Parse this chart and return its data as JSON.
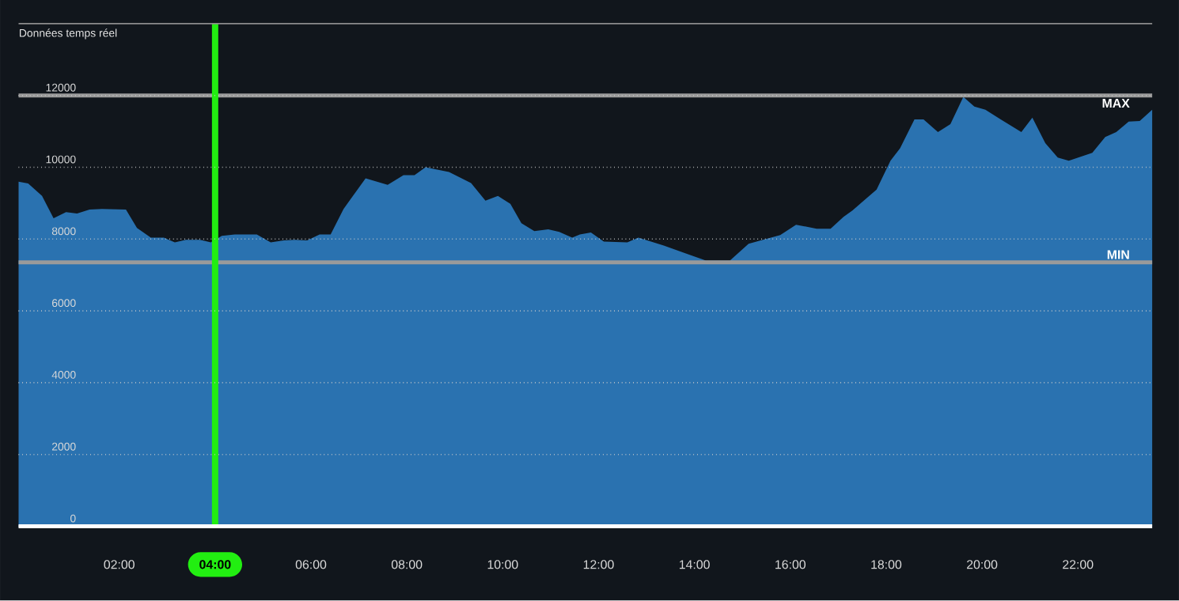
{
  "chart_data": {
    "type": "area",
    "title": "Données temps réel",
    "x": [
      -0.1,
      0.1,
      0.39,
      0.63,
      0.89,
      1.12,
      1.38,
      1.64,
      2.14,
      2.37,
      2.66,
      2.93,
      3.16,
      3.39,
      3.68,
      3.91,
      4.14,
      4.41,
      4.87,
      5.16,
      5.43,
      5.66,
      5.92,
      6.18,
      6.41,
      6.68,
      7.14,
      7.6,
      7.93,
      8.16,
      8.39,
      8.88,
      9.34,
      9.64,
      9.9,
      10.16,
      10.39,
      10.66,
      10.95,
      11.18,
      11.45,
      11.61,
      11.84,
      12.11,
      12.6,
      12.83,
      13.36,
      13.82,
      14.24,
      14.74,
      15.13,
      15.49,
      15.79,
      16.12,
      16.55,
      16.84,
      17.11,
      17.3,
      17.8,
      18.09,
      18.29,
      18.59,
      18.78,
      19.08,
      19.34,
      19.61,
      19.84,
      20.07,
      20.39,
      20.82,
      21.05,
      21.32,
      21.58,
      21.81,
      22.3,
      22.57,
      22.8,
      23.06,
      23.29,
      23.55
    ],
    "series": [
      {
        "color": "#2a72b0",
        "values": [
          9600,
          9550,
          9200,
          8580,
          8750,
          8710,
          8820,
          8840,
          8820,
          8310,
          8040,
          8040,
          7910,
          7980,
          7980,
          7910,
          8090,
          8130,
          8130,
          7910,
          7960,
          7980,
          7960,
          8130,
          8130,
          8840,
          9690,
          9510,
          9780,
          9780,
          10000,
          9870,
          9560,
          9070,
          9200,
          8980,
          8440,
          8220,
          8270,
          8200,
          8040,
          8130,
          8180,
          7930,
          7910,
          8040,
          7820,
          7600,
          7400,
          7400,
          7870,
          8000,
          8110,
          8400,
          8290,
          8290,
          8620,
          8800,
          9380,
          10180,
          10530,
          11330,
          11330,
          10980,
          11200,
          11960,
          11690,
          11600,
          11330,
          10980,
          11380,
          10670,
          10270,
          10180,
          10400,
          10840,
          10980,
          11270,
          11290,
          11600
        ]
      }
    ],
    "xlim": [
      -0.1,
      23.55
    ],
    "ylim": [
      0,
      14000
    ],
    "xticks": [
      {
        "value": 2,
        "label": "02:00"
      },
      {
        "value": 4,
        "label": "04:00"
      },
      {
        "value": 6,
        "label": "06:00"
      },
      {
        "value": 8,
        "label": "08:00"
      },
      {
        "value": 10,
        "label": "10:00"
      },
      {
        "value": 12,
        "label": "12:00"
      },
      {
        "value": 14,
        "label": "14:00"
      },
      {
        "value": 16,
        "label": "16:00"
      },
      {
        "value": 18,
        "label": "18:00"
      },
      {
        "value": 20,
        "label": "20:00"
      },
      {
        "value": 22,
        "label": "22:00"
      }
    ],
    "yticks": [
      0,
      2000,
      4000,
      6000,
      8000,
      10000,
      12000
    ],
    "grid": "y",
    "ref_lines": [
      {
        "axis": "y",
        "value": 12000,
        "label": "MAX",
        "color": "#9a9a9a"
      },
      {
        "axis": "y",
        "value": 7350,
        "label": "MIN",
        "color": "#9a9a9a"
      },
      {
        "axis": "x",
        "value": 4,
        "color": "#22ee11"
      }
    ]
  }
}
